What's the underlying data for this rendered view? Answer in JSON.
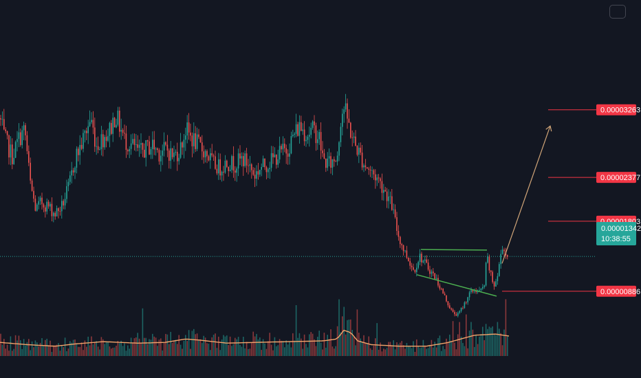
{
  "chart_data": {
    "type": "candlestick",
    "title": "",
    "ylim": [
      2e-06,
      4.7e-05
    ],
    "colors": {
      "background": "#131722",
      "up": "#26a69a",
      "down": "#ef5350",
      "level_line": "#f23645",
      "pattern_line": "#4caf50",
      "projection": "#d2a679",
      "volume_ma": "#f4a46a",
      "current_price": "#26a69a"
    },
    "price_waypoints": [
      [
        0,
        3.15e-05
      ],
      [
        6,
        2.9e-05
      ],
      [
        18,
        2.65e-05
      ],
      [
        28,
        2.9e-05
      ],
      [
        36,
        3e-05
      ],
      [
        44,
        2.3e-05
      ],
      [
        52,
        1.95e-05
      ],
      [
        60,
        2.05e-05
      ],
      [
        70,
        2e-05
      ],
      [
        80,
        1.9e-05
      ],
      [
        90,
        2e-05
      ],
      [
        100,
        2.25e-05
      ],
      [
        110,
        2.65e-05
      ],
      [
        118,
        2.8e-05
      ],
      [
        126,
        3e-05
      ],
      [
        132,
        3.15e-05
      ],
      [
        140,
        2.8e-05
      ],
      [
        150,
        2.9e-05
      ],
      [
        160,
        3e-05
      ],
      [
        168,
        3.2e-05
      ],
      [
        174,
        3.05e-05
      ],
      [
        182,
        2.85e-05
      ],
      [
        192,
        2.8e-05
      ],
      [
        202,
        2.7e-05
      ],
      [
        212,
        2.75e-05
      ],
      [
        222,
        2.8e-05
      ],
      [
        232,
        2.7e-05
      ],
      [
        242,
        2.75e-05
      ],
      [
        252,
        2.65e-05
      ],
      [
        262,
        2.75e-05
      ],
      [
        270,
        3e-05
      ],
      [
        278,
        2.9e-05
      ],
      [
        288,
        2.8e-05
      ],
      [
        300,
        2.7e-05
      ],
      [
        310,
        2.55e-05
      ],
      [
        320,
        2.5e-05
      ],
      [
        330,
        2.58e-05
      ],
      [
        342,
        2.55e-05
      ],
      [
        352,
        2.62e-05
      ],
      [
        362,
        2.55e-05
      ],
      [
        370,
        2.4e-05
      ],
      [
        378,
        2.5e-05
      ],
      [
        388,
        2.55e-05
      ],
      [
        398,
        2.62e-05
      ],
      [
        408,
        2.7e-05
      ],
      [
        418,
        2.75e-05
      ],
      [
        428,
        2.95e-05
      ],
      [
        436,
        3.05e-05
      ],
      [
        446,
        2.95e-05
      ],
      [
        456,
        3e-05
      ],
      [
        464,
        2.9e-05
      ],
      [
        470,
        2.6e-05
      ],
      [
        480,
        2.55e-05
      ],
      [
        490,
        2.65e-05
      ],
      [
        496,
        3.2e-05
      ],
      [
        500,
        3.3e-05
      ],
      [
        506,
        3.1e-05
      ],
      [
        514,
        2.85e-05
      ],
      [
        522,
        2.7e-05
      ],
      [
        530,
        2.55e-05
      ],
      [
        540,
        2.45e-05
      ],
      [
        550,
        2.35e-05
      ],
      [
        560,
        2.2e-05
      ],
      [
        570,
        2e-05
      ],
      [
        578,
        1.65e-05
      ],
      [
        586,
        1.45e-05
      ],
      [
        594,
        1.3e-05
      ],
      [
        602,
        1.15e-05
      ],
      [
        610,
        1.35e-05
      ],
      [
        618,
        1.25e-05
      ],
      [
        626,
        1.15e-05
      ],
      [
        634,
        1.05e-05
      ],
      [
        642,
        9e-06
      ],
      [
        650,
        7.5e-06
      ],
      [
        658,
        6e-06
      ],
      [
        666,
        5.8e-06
      ],
      [
        674,
        7e-06
      ],
      [
        682,
        8.5e-06
      ],
      [
        690,
        9e-06
      ],
      [
        698,
        8.8e-06
      ],
      [
        704,
        9.5e-06
      ],
      [
        708,
        1.35e-05
      ],
      [
        712,
        1.15e-05
      ],
      [
        718,
        9.5e-06
      ],
      [
        724,
        1.1e-05
      ],
      [
        730,
        1.5e-05
      ],
      [
        736,
        1.35e-05
      ],
      [
        740,
        1.42e-05
      ]
    ],
    "levels": [
      {
        "label": "0.00003263",
        "value": 3.263e-05
      },
      {
        "label": "0.00002377",
        "value": 2.377e-05
      },
      {
        "label": "0.00001803",
        "value": 1.803e-05
      },
      {
        "label": "0.00000886",
        "value": 8.86e-06
      }
    ],
    "current_price": {
      "label": "0.00001342",
      "value": 1.342e-05,
      "countdown": "10:38:55"
    },
    "pattern": {
      "upper": [
        [
          612,
          1.433e-05
        ],
        [
          708,
          1.425e-05
        ]
      ],
      "lower": [
        [
          606,
          1.103e-05
        ],
        [
          722,
          8.22e-06
        ]
      ]
    },
    "projection": {
      "from": [
        730,
        1.25e-05
      ],
      "to": [
        800,
        3.05e-05
      ]
    },
    "volume": {
      "ylim": [
        0,
        200
      ],
      "ma_waypoints": [
        [
          0,
          36
        ],
        [
          40,
          30
        ],
        [
          80,
          26
        ],
        [
          110,
          32
        ],
        [
          150,
          38
        ],
        [
          200,
          34
        ],
        [
          240,
          36
        ],
        [
          270,
          45
        ],
        [
          290,
          42
        ],
        [
          330,
          34
        ],
        [
          370,
          36
        ],
        [
          420,
          38
        ],
        [
          470,
          40
        ],
        [
          490,
          45
        ],
        [
          500,
          68
        ],
        [
          510,
          62
        ],
        [
          520,
          40
        ],
        [
          540,
          30
        ],
        [
          580,
          26
        ],
        [
          620,
          26
        ],
        [
          650,
          35
        ],
        [
          670,
          45
        ],
        [
          690,
          55
        ],
        [
          720,
          58
        ],
        [
          740,
          53
        ]
      ],
      "spikes": [
        [
          494,
          150
        ],
        [
          500,
          130
        ],
        [
          506,
          95
        ],
        [
          678,
          110
        ],
        [
          684,
          90
        ],
        [
          706,
          85
        ],
        [
          714,
          75
        ],
        [
          724,
          90
        ],
        [
          732,
          70
        ]
      ]
    }
  }
}
